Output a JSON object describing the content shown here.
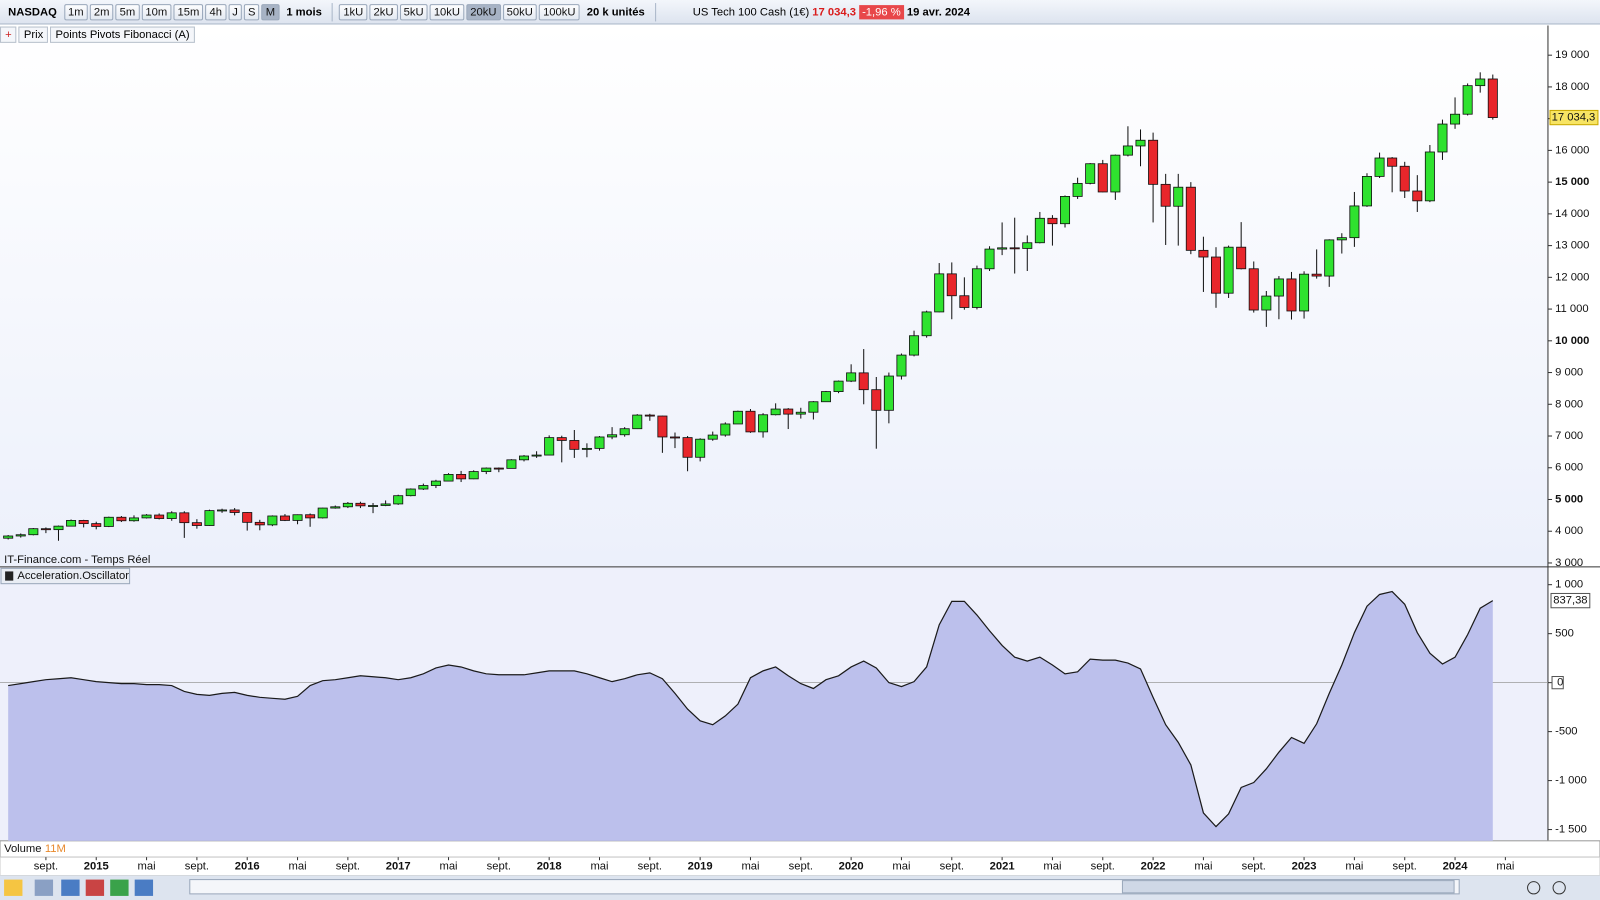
{
  "toolbar": {
    "symbol": "NASDAQ",
    "periods": [
      "1m",
      "2m",
      "5m",
      "10m",
      "15m",
      "4h",
      "J",
      "S",
      "M"
    ],
    "range": "1 mois",
    "units": [
      "1kU",
      "2kU",
      "5kU",
      "10kU",
      "20kU",
      "50kU",
      "100kU"
    ],
    "unit_size": "20 k unités",
    "instrument": "US Tech 100 Cash (1€)",
    "price": "17 034,3",
    "change": "-1,96 %",
    "date": "19 avr. 2024"
  },
  "legend": {
    "price": "Prix",
    "indicator": "Points Pivots Fibonacci (A)"
  },
  "volume": {
    "name": "Volume",
    "value": "11M"
  },
  "chart_data": [
    {
      "type": "candlestick",
      "watermark": "IT-Finance.com - Temps Réel",
      "last_label": "17 034,3",
      "up_color": "#2fe22f",
      "down_color": "#e8262b",
      "categories": [
        null,
        null,
        null,
        "sept.",
        null,
        null,
        null,
        "2015",
        null,
        null,
        null,
        "mai",
        null,
        null,
        null,
        "sept.",
        null,
        null,
        null,
        "2016",
        null,
        null,
        null,
        "mai",
        null,
        null,
        null,
        "sept.",
        null,
        null,
        null,
        "2017",
        null,
        null,
        null,
        "mai",
        null,
        null,
        null,
        "sept.",
        null,
        null,
        null,
        "2018",
        null,
        null,
        null,
        "mai",
        null,
        null,
        null,
        "sept.",
        null,
        null,
        null,
        "2019",
        null,
        null,
        null,
        "mai",
        null,
        null,
        null,
        "sept.",
        null,
        null,
        null,
        "2020",
        null,
        null,
        null,
        "mai",
        null,
        null,
        null,
        "sept.",
        null,
        null,
        null,
        "2021",
        null,
        null,
        null,
        "mai",
        null,
        null,
        null,
        "sept.",
        null,
        null,
        null,
        "2022",
        null,
        null,
        null,
        "mai",
        null,
        null,
        null,
        "sept.",
        null,
        null,
        null,
        "2023",
        null,
        null,
        null,
        "mai",
        null,
        null,
        null,
        "sept.",
        null,
        null,
        null,
        "2024",
        null,
        null,
        null,
        "mai"
      ],
      "open": [
        3780,
        3850,
        3890,
        4080,
        4050,
        4160,
        4340,
        4240,
        4150,
        4440,
        4330,
        4420,
        4510,
        4400,
        4580,
        4270,
        4180,
        4650,
        4670,
        4590,
        4280,
        4200,
        4480,
        4340,
        4520,
        4420,
        4730,
        4770,
        4880,
        4800,
        4810,
        4860,
        5120,
        5330,
        5440,
        5580,
        5790,
        5650,
        5880,
        5990,
        5980,
        6250,
        6370,
        6400,
        6950,
        6860,
        6580,
        6610,
        6970,
        7040,
        7230,
        7660,
        7630,
        6970,
        6950,
        6330,
        6900,
        7030,
        7380,
        7780,
        7130,
        7670,
        7850,
        7690,
        7750,
        8080,
        8400,
        8730,
        8990,
        8460,
        7810,
        8890,
        9550,
        10160,
        10910,
        12110,
        11420,
        11050,
        12270,
        12890,
        12930,
        12910,
        13090,
        13860,
        13690,
        14550,
        14960,
        15580,
        14690,
        15850,
        16140,
        16320,
        14930,
        14240,
        14840,
        12850,
        12640,
        11500,
        12950,
        12270,
        10970,
        11410,
        11950,
        10940,
        12100,
        12040,
        13180,
        13250,
        14250,
        15180,
        15760,
        15500,
        14720,
        14410,
        15950,
        16830,
        17140,
        18040,
        18250,
        null
      ],
      "high": [
        3880,
        3930,
        4100,
        4120,
        4180,
        4370,
        4360,
        4300,
        4460,
        4480,
        4500,
        4540,
        4560,
        4630,
        4630,
        4380,
        4680,
        4710,
        4730,
        4600,
        4360,
        4500,
        4540,
        4530,
        4560,
        4740,
        4810,
        4920,
        4930,
        4890,
        4970,
        5150,
        5350,
        5500,
        5620,
        5830,
        5900,
        5920,
        6010,
        6010,
        6270,
        6400,
        6520,
        7020,
        7010,
        7190,
        6770,
        7000,
        7280,
        7280,
        7690,
        7700,
        7640,
        7110,
        7000,
        6930,
        7140,
        7430,
        7800,
        7850,
        7720,
        8030,
        7880,
        7890,
        8100,
        8420,
        8750,
        9260,
        9740,
        8860,
        9000,
        9600,
        10320,
        10950,
        12450,
        12470,
        12000,
        12370,
        12980,
        13730,
        13880,
        13320,
        14060,
        13960,
        14580,
        15140,
        15600,
        15700,
        15870,
        16760,
        16660,
        16560,
        15260,
        15260,
        15000,
        13280,
        12950,
        13000,
        13740,
        12500,
        11570,
        12040,
        12170,
        12190,
        12880,
        13200,
        13390,
        14690,
        15280,
        15930,
        15790,
        15640,
        15220,
        16170,
        16970,
        17670,
        18110,
        18460,
        18390,
        null
      ],
      "low": [
        3740,
        3800,
        3870,
        3940,
        3700,
        4150,
        4120,
        4060,
        4130,
        4290,
        4300,
        4400,
        4370,
        4330,
        3790,
        4080,
        4170,
        4580,
        4500,
        4020,
        4030,
        4160,
        4320,
        4220,
        4140,
        4400,
        4710,
        4730,
        4730,
        4570,
        4790,
        4830,
        5100,
        5300,
        5360,
        5570,
        5550,
        5640,
        5800,
        5860,
        5980,
        6200,
        6310,
        6390,
        6170,
        6310,
        6330,
        6540,
        6900,
        6980,
        7220,
        7480,
        6470,
        6620,
        5890,
        6200,
        6850,
        6980,
        7380,
        7100,
        6950,
        7650,
        7220,
        7550,
        7520,
        8080,
        8350,
        8700,
        8000,
        6600,
        7400,
        8780,
        9510,
        10100,
        10900,
        10680,
        10980,
        10990,
        12200,
        12700,
        12120,
        12200,
        13070,
        13000,
        13570,
        14470,
        14930,
        14680,
        14440,
        15810,
        15500,
        13730,
        13020,
        13000,
        12730,
        11540,
        11040,
        11350,
        12250,
        10890,
        10440,
        10680,
        10670,
        10700,
        11960,
        11700,
        12750,
        12960,
        14220,
        15130,
        14680,
        14500,
        14060,
        14370,
        15700,
        16680,
        17100,
        17820,
        16970,
        null
      ],
      "close": [
        3850,
        3890,
        4080,
        4050,
        4160,
        4340,
        4240,
        4150,
        4440,
        4330,
        4420,
        4510,
        4400,
        4580,
        4270,
        4180,
        4650,
        4670,
        4590,
        4280,
        4200,
        4480,
        4340,
        4520,
        4420,
        4730,
        4770,
        4880,
        4800,
        4810,
        4860,
        5120,
        5330,
        5440,
        5580,
        5790,
        5650,
        5880,
        5990,
        5980,
        6250,
        6370,
        6400,
        6950,
        6860,
        6580,
        6610,
        6970,
        7040,
        7230,
        7660,
        7630,
        6970,
        6950,
        6330,
        6900,
        7030,
        7380,
        7780,
        7130,
        7670,
        7850,
        7690,
        7750,
        8080,
        8400,
        8730,
        8990,
        8460,
        7810,
        8890,
        9550,
        10160,
        10910,
        12110,
        11420,
        11050,
        12270,
        12890,
        12930,
        12910,
        13090,
        13860,
        13690,
        14550,
        14960,
        15580,
        14690,
        15850,
        16140,
        16320,
        14930,
        14240,
        14840,
        12850,
        12640,
        11500,
        12950,
        12270,
        10970,
        11410,
        11950,
        10940,
        12100,
        12040,
        13180,
        13250,
        14250,
        15180,
        15760,
        15500,
        14720,
        14410,
        15950,
        16830,
        17140,
        18040,
        18250,
        17034.3,
        null
      ],
      "ylim": [
        2894,
        19935
      ],
      "yticks": [
        {
          "value": 3000,
          "label": "3 000"
        },
        {
          "value": 4000,
          "label": "4 000"
        },
        {
          "value": 5000,
          "label": "5 000"
        },
        {
          "value": 6000,
          "label": "6 000"
        },
        {
          "value": 7000,
          "label": "7 000"
        },
        {
          "value": 8000,
          "label": "8 000"
        },
        {
          "value": 9000,
          "label": "9 000"
        },
        {
          "value": 10000,
          "label": "10 000"
        },
        {
          "value": 11000,
          "label": "11 000"
        },
        {
          "value": 12000,
          "label": "12 000"
        },
        {
          "value": 13000,
          "label": "13 000"
        },
        {
          "value": 14000,
          "label": "14 000"
        },
        {
          "value": 15000,
          "label": "15 000"
        },
        {
          "value": 16000,
          "label": "16 000"
        },
        {
          "value": 17000,
          "label": "17 000"
        },
        {
          "value": 18000,
          "label": "18 000"
        },
        {
          "value": 19000,
          "label": "19 000"
        }
      ],
      "grid": false
    },
    {
      "type": "area",
      "name": "Acceleration.Oscillator",
      "color": "#bcc0ec",
      "line_color": "#1a1a1a",
      "value_label": "837,38",
      "values": [
        -30,
        -10,
        10,
        30,
        40,
        50,
        30,
        10,
        0,
        -10,
        -10,
        -20,
        -20,
        -30,
        -90,
        -120,
        -130,
        -110,
        -100,
        -130,
        -150,
        -160,
        -170,
        -140,
        -30,
        20,
        30,
        50,
        70,
        60,
        50,
        30,
        50,
        90,
        150,
        180,
        160,
        120,
        90,
        80,
        80,
        80,
        100,
        120,
        120,
        120,
        90,
        50,
        10,
        40,
        80,
        100,
        40,
        -110,
        -270,
        -390,
        -430,
        -340,
        -220,
        50,
        120,
        160,
        70,
        -10,
        -60,
        30,
        70,
        160,
        220,
        150,
        0,
        -40,
        10,
        160,
        590,
        830,
        830,
        690,
        530,
        380,
        260,
        220,
        260,
        180,
        90,
        110,
        240,
        230,
        230,
        200,
        140,
        -150,
        -430,
        -610,
        -840,
        -1330,
        -1470,
        -1340,
        -1070,
        -1020,
        -880,
        -710,
        -560,
        -620,
        -420,
        -110,
        180,
        510,
        780,
        900,
        930,
        800,
        510,
        300,
        190,
        260,
        490,
        760,
        837.38,
        null
      ],
      "ylim": [
        -1615,
        1177
      ],
      "yticks": [
        {
          "value": 1000,
          "label": "1 000"
        },
        500,
        0,
        -500,
        {
          "value": -1000,
          "label": "-1 000"
        },
        {
          "value": -1500,
          "label": "-1 500"
        }
      ],
      "grid": false
    }
  ]
}
